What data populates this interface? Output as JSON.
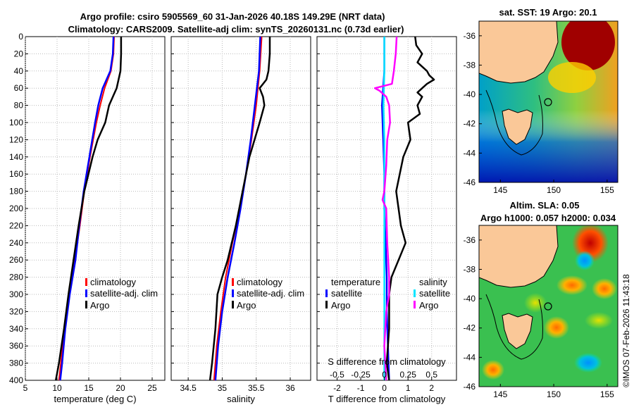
{
  "header": {
    "title_line1": "Argo profile: csiro 5905569_60 31-Jan-2026 40.18S 149.29E (NRT data)",
    "title_line2": "Climatology: CARS2009. Satellite-adj clim: synTS_20260131.nc (0.73d earlier)"
  },
  "credit": "©IMOS 07-Feb-2026 11:43:18",
  "colors": {
    "climatology": "#ff0000",
    "satellite": "#0000ff",
    "argo": "#000000",
    "sal_sat": "#00e5ff",
    "sal_diff": "#ff00ff",
    "land": "#fac898"
  },
  "chart_data": [
    {
      "type": "line",
      "name": "temperature-panel",
      "xlabel": "temperature (deg C)",
      "ylabel": "",
      "xlim": [
        5,
        27
      ],
      "ylim": [
        400,
        0
      ],
      "xticks": [
        "5",
        "10",
        "15",
        "20",
        "25"
      ],
      "yticks": [
        "0",
        "20",
        "40",
        "60",
        "80",
        "100",
        "120",
        "140",
        "160",
        "180",
        "200",
        "220",
        "240",
        "260",
        "280",
        "300",
        "320",
        "340",
        "360",
        "380",
        "400"
      ],
      "legend": [
        "climatology",
        "satellite-adj. clim",
        "Argo"
      ],
      "series": [
        {
          "name": "climatology",
          "depth": [
            0,
            20,
            40,
            60,
            80,
            100,
            140,
            180,
            220,
            260,
            300,
            340,
            380,
            400
          ],
          "values": [
            19.0,
            18.9,
            18.5,
            17.5,
            16.8,
            16.2,
            15.2,
            14.3,
            13.6,
            12.8,
            11.9,
            11.2,
            10.6,
            10.3
          ]
        },
        {
          "name": "satellite-adj. clim",
          "depth": [
            0,
            20,
            40,
            60,
            80,
            100,
            140,
            180,
            220,
            260,
            300,
            340,
            380,
            400
          ],
          "values": [
            18.9,
            18.8,
            18.4,
            17.2,
            16.5,
            16.0,
            15.1,
            14.2,
            13.5,
            12.9,
            12.0,
            11.3,
            10.8,
            10.5
          ]
        },
        {
          "name": "Argo",
          "depth": [
            0,
            20,
            40,
            50,
            60,
            70,
            80,
            100,
            120,
            140,
            180,
            220,
            260,
            300,
            340,
            380,
            400
          ],
          "values": [
            20.1,
            20.1,
            20.0,
            19.7,
            19.4,
            18.8,
            18.2,
            17.6,
            16.4,
            15.6,
            14.3,
            13.4,
            12.6,
            11.8,
            11.1,
            10.3,
            9.8
          ]
        }
      ]
    },
    {
      "type": "line",
      "name": "salinity-panel",
      "xlabel": "salinity",
      "ylabel": "",
      "xlim": [
        34.25,
        36.3
      ],
      "ylim": [
        400,
        0
      ],
      "xticks": [
        "34.5",
        "35",
        "35.5",
        "36"
      ],
      "legend": [
        "climatology",
        "satellite-adj. clim",
        "Argo"
      ],
      "series": [
        {
          "name": "climatology",
          "depth": [
            0,
            40,
            80,
            120,
            160,
            200,
            240,
            280,
            320,
            360,
            400
          ],
          "values": [
            35.58,
            35.55,
            35.5,
            35.43,
            35.35,
            35.26,
            35.15,
            35.05,
            34.98,
            34.92,
            34.88
          ]
        },
        {
          "name": "satellite-adj. clim",
          "depth": [
            0,
            40,
            80,
            120,
            160,
            200,
            240,
            280,
            320,
            360,
            400
          ],
          "values": [
            35.56,
            35.54,
            35.48,
            35.42,
            35.35,
            35.27,
            35.18,
            35.08,
            35.0,
            34.94,
            34.9
          ]
        },
        {
          "name": "Argo",
          "depth": [
            0,
            20,
            40,
            50,
            60,
            70,
            80,
            100,
            140,
            180,
            220,
            260,
            280,
            300,
            340,
            380,
            400
          ],
          "values": [
            35.7,
            35.7,
            35.68,
            35.65,
            35.55,
            35.6,
            35.62,
            35.55,
            35.4,
            35.3,
            35.2,
            35.08,
            35.0,
            34.93,
            34.9,
            34.85,
            34.82
          ]
        }
      ]
    },
    {
      "type": "line",
      "name": "difference-panel",
      "xlabel": "T difference from climatology",
      "xlabel2": "S difference from climatology",
      "xlim": [
        -2.85,
        3.05
      ],
      "ylim": [
        400,
        0
      ],
      "xticks": [
        "-2",
        "-1",
        "0",
        "1",
        "2"
      ],
      "xticks2": [
        "-0.5",
        "-0.25",
        "0",
        "0.25",
        "0.5"
      ],
      "legend_temp": {
        "title": "temperature",
        "items": [
          "satellite",
          "Argo"
        ]
      },
      "legend_sal": {
        "title": "salinity",
        "items": [
          "satellite",
          "Argo"
        ]
      },
      "series": [
        {
          "name": "T satellite",
          "depth": [
            0,
            40,
            80,
            120,
            160,
            200,
            240,
            280,
            320,
            360,
            400
          ],
          "values": [
            0.0,
            0.0,
            -0.1,
            -0.05,
            0.0,
            0.0,
            0.05,
            0.1,
            0.1,
            0.15,
            0.2
          ]
        },
        {
          "name": "T Argo",
          "depth": [
            0,
            10,
            20,
            30,
            40,
            45,
            50,
            55,
            60,
            65,
            70,
            80,
            90,
            100,
            120,
            140,
            180,
            220,
            240,
            260,
            280,
            300,
            340,
            380,
            400
          ],
          "values": [
            1.3,
            1.35,
            1.6,
            1.4,
            1.8,
            1.9,
            2.1,
            1.8,
            1.6,
            1.4,
            1.6,
            1.4,
            1.5,
            1.0,
            1.1,
            0.8,
            0.5,
            0.7,
            0.9,
            0.6,
            0.3,
            0.2,
            0.2,
            0.1,
            0.2
          ]
        },
        {
          "name": "S satellite",
          "depth": [
            0,
            40,
            80,
            120,
            160,
            200,
            240,
            280,
            320,
            360,
            400
          ],
          "values": [
            0.0,
            0.0,
            -0.01,
            0.0,
            0.0,
            0.0,
            0.0,
            0.0,
            0.0,
            0.0,
            0.0
          ]
        },
        {
          "name": "S Argo",
          "depth": [
            0,
            20,
            40,
            55,
            60,
            63,
            70,
            80,
            100,
            120,
            150,
            180,
            190,
            200,
            240,
            280,
            300,
            320,
            360,
            400
          ],
          "values": [
            0.13,
            0.12,
            0.1,
            0.08,
            -0.1,
            -0.05,
            0.02,
            0.05,
            0.06,
            0.03,
            0.02,
            0.0,
            -0.02,
            0.02,
            0.03,
            0.05,
            0.05,
            0.02,
            0.0,
            0.02
          ]
        }
      ]
    },
    {
      "type": "heatmap",
      "name": "sst-map",
      "title": "sat. SST: 19 Argo: 20.1",
      "lon_range": [
        143,
        156
      ],
      "lat_range": [
        -46,
        -35
      ],
      "xticks": [
        "145",
        "150",
        "155"
      ],
      "yticks": [
        "-36",
        "-38",
        "-40",
        "-42",
        "-44",
        "-46"
      ],
      "argo_position": {
        "lon": 149.29,
        "lat": -40.18
      }
    },
    {
      "type": "heatmap",
      "name": "sla-map",
      "title": "Altim. SLA: 0.05",
      "subtitle": "Argo h1000: 0.057 h2000: 0.034",
      "lon_range": [
        143,
        156
      ],
      "lat_range": [
        -46,
        -35
      ],
      "xticks": [
        "145",
        "150",
        "155"
      ],
      "yticks": [
        "-36",
        "-38",
        "-40",
        "-42",
        "-44",
        "-46"
      ],
      "argo_position": {
        "lon": 149.29,
        "lat": -40.18
      }
    }
  ]
}
